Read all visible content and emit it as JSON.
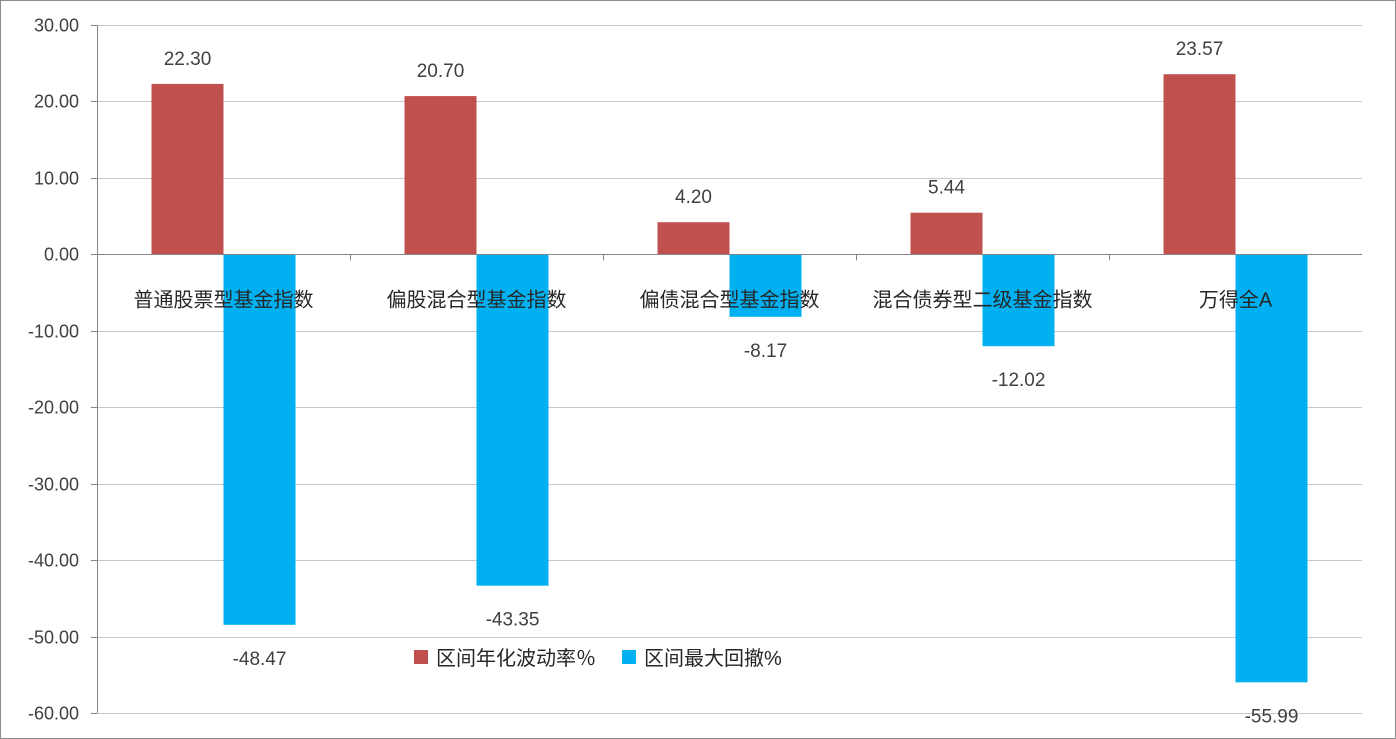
{
  "chart_data": {
    "type": "bar",
    "title": "",
    "xlabel": "",
    "ylabel": "",
    "categories": [
      "普通股票型基金指数",
      "偏股混合型基金指数",
      "偏债混合型基金指数",
      "混合债券型二级基金指数",
      "万得全A"
    ],
    "series": [
      {
        "name": "区间年化波动率％",
        "color": "#c0504d",
        "values": [
          22.3,
          20.7,
          4.2,
          5.44,
          23.57
        ]
      },
      {
        "name": "区间最大回撤%",
        "color": "#00b0f0",
        "values": [
          -48.47,
          -43.35,
          -8.17,
          -12.02,
          -55.99
        ]
      }
    ],
    "ylim": [
      -60,
      30
    ],
    "yticks": [
      "30.00",
      "20.00",
      "10.00",
      "0.00",
      "-10.00",
      "-20.00",
      "-30.00",
      "-40.00",
      "-50.00",
      "-60.00"
    ],
    "data_labels": [
      [
        "22.30",
        "20.70",
        "4.20",
        "5.44",
        "23.57"
      ],
      [
        "-48.47",
        "-43.35",
        "-8.17",
        "-12.02",
        "-55.99"
      ]
    ],
    "grid": true,
    "legend": "bottom-center"
  }
}
